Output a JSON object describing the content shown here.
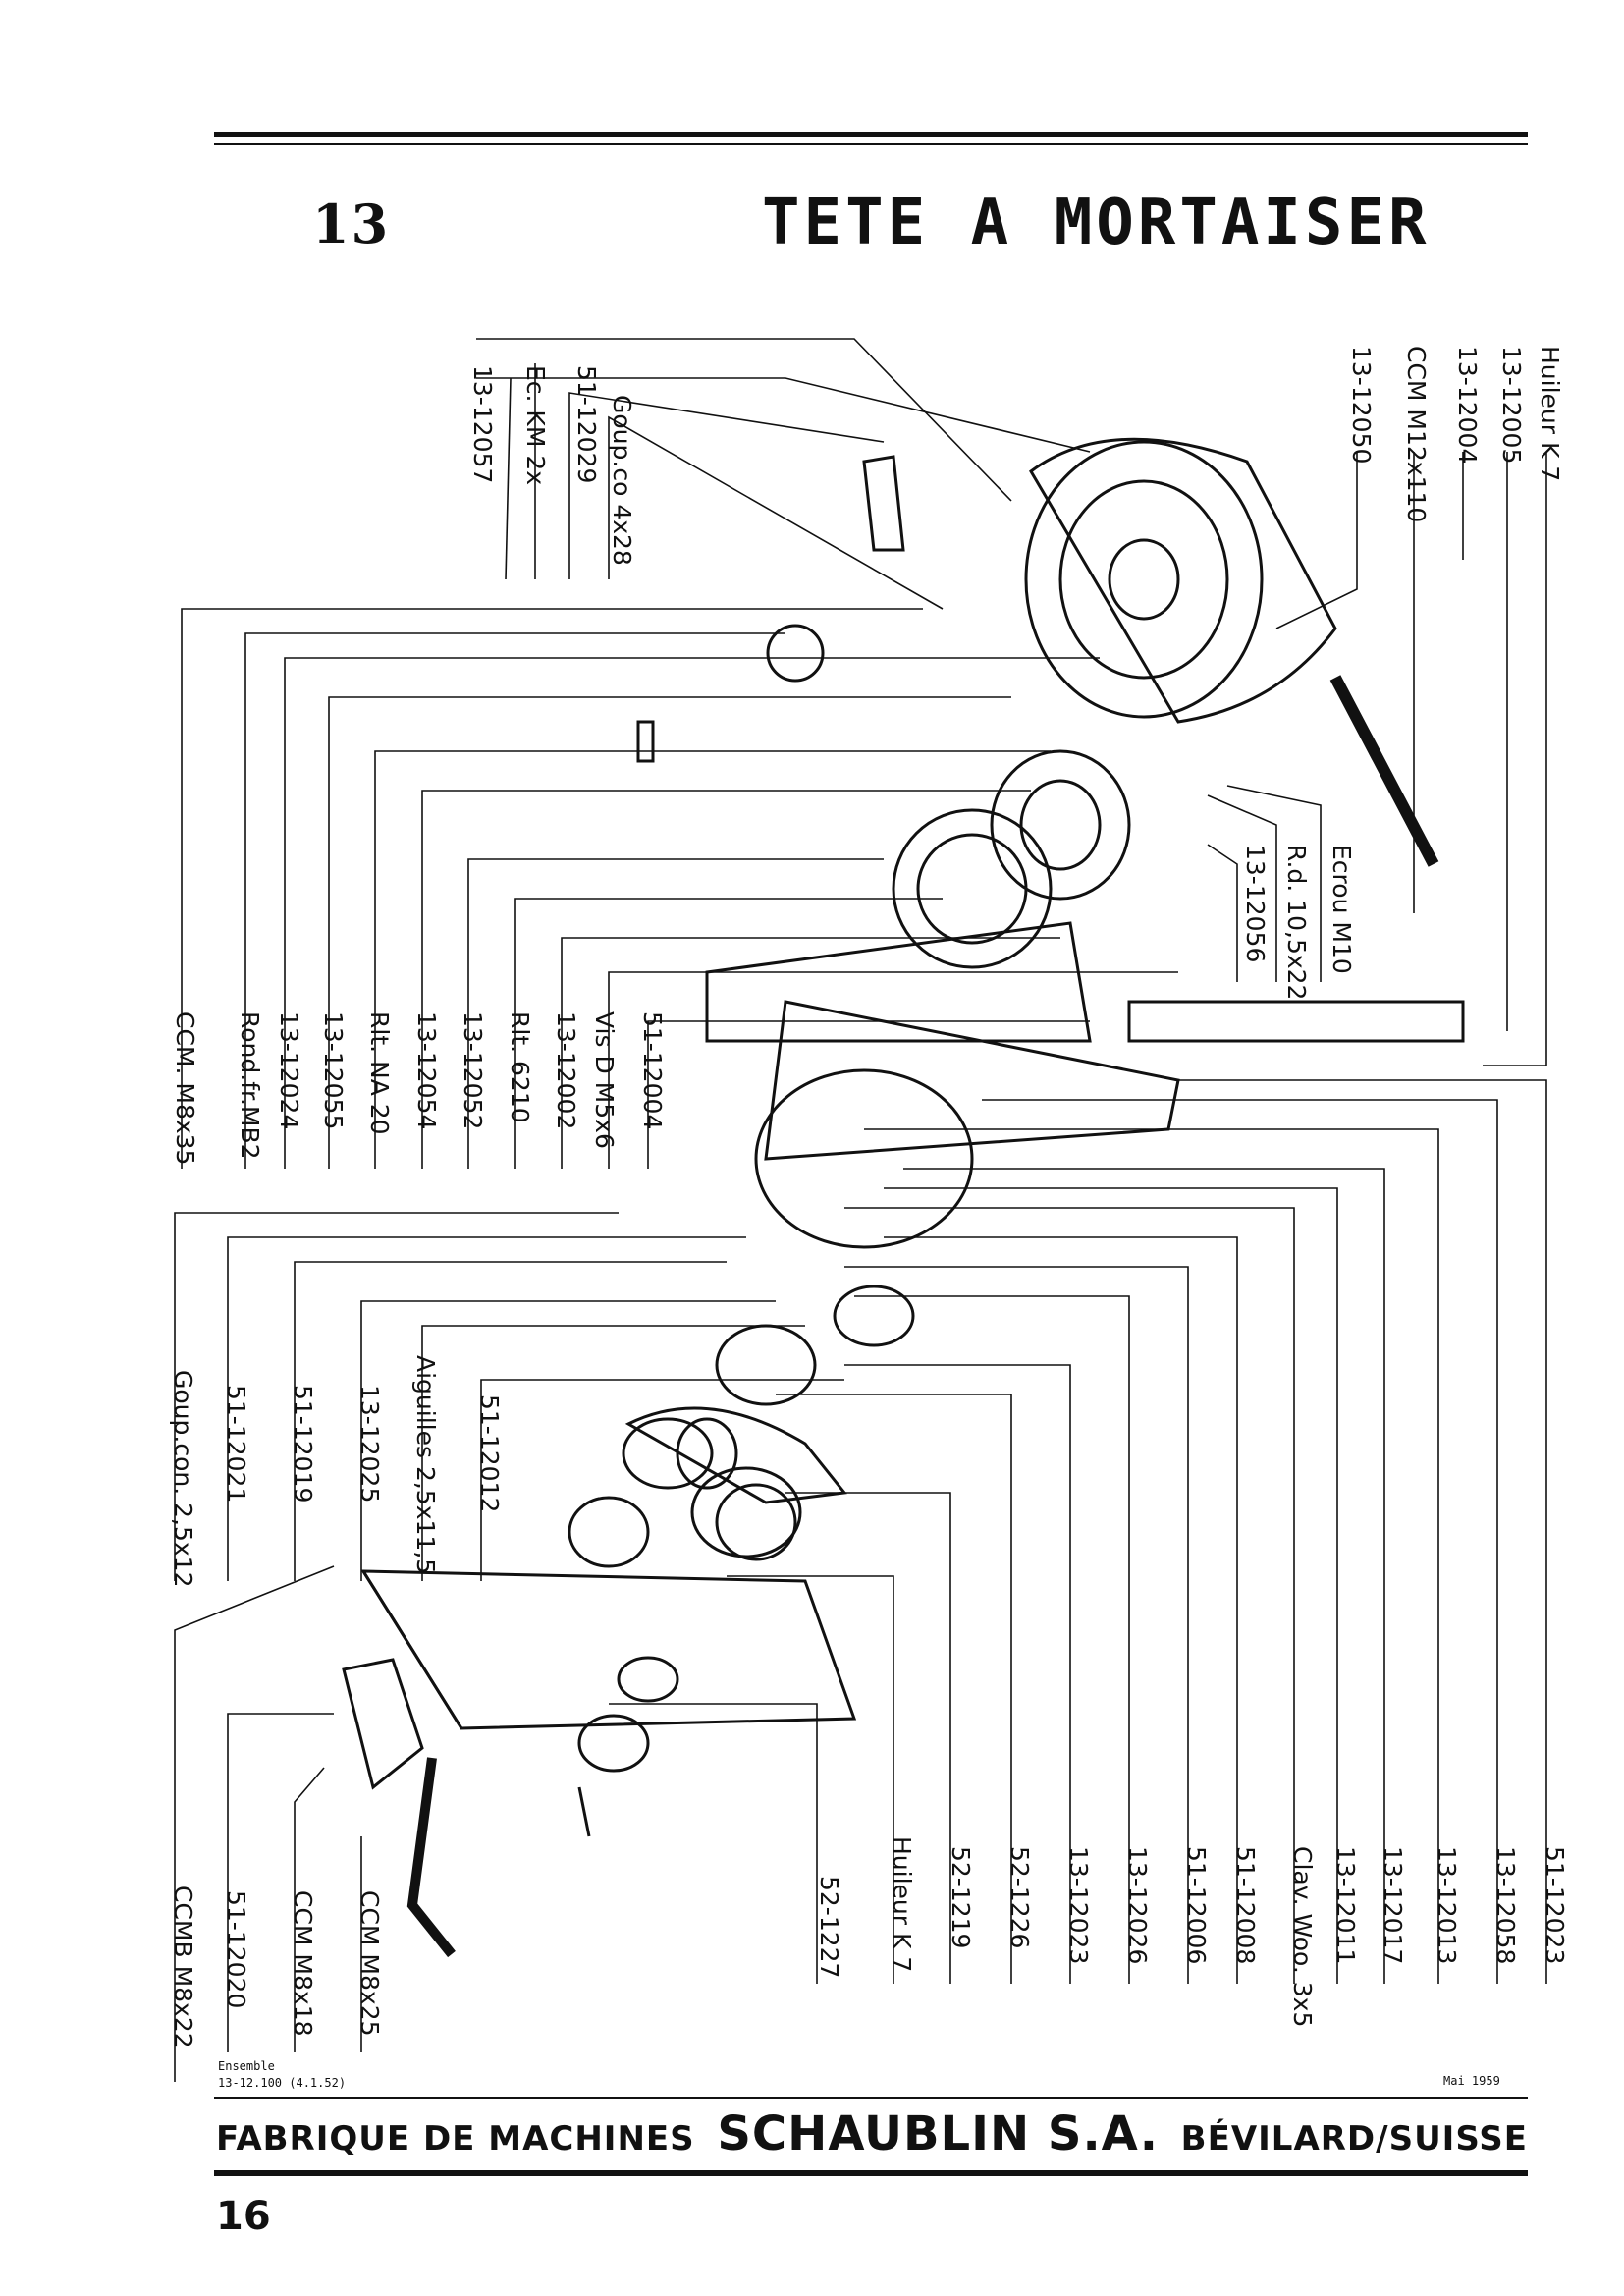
{
  "header": {
    "section_number": "13",
    "title": "TETE A MORTAISER"
  },
  "labels_top_left": [
    "13-12057",
    "Ec. KM 2x",
    "51-12029",
    "Goup.co 4x28"
  ],
  "labels_top_right": [
    "13-12050",
    "CCM M12x110",
    "13-12004",
    "13-12005",
    "Huileur K 7"
  ],
  "labels_middle_right": [
    "13-12056",
    "R.d. 10,5x22",
    "Ecrou M10"
  ],
  "labels_middle_left": [
    "CCM. M8x35",
    "Rond.fr.MB2",
    "13-12024",
    "13-12055",
    "Rlt. NA 20",
    "13-12054",
    "13-12052",
    "Rlt. 6210",
    "13-12002",
    "Vis D M5x6",
    "51-12004"
  ],
  "labels_lower_left": [
    "Goup.con. 2,5x12",
    "51-12021",
    "51-12019",
    "13-12025",
    "Aiguilles 2,5x11,5",
    "51-12012"
  ],
  "labels_bottom_left": [
    "CCMB M8x22",
    "51-12020",
    "CCM M8x18",
    "CCM M8x25"
  ],
  "labels_bottom_right": [
    "52-1227",
    "Huileur K 7",
    "52-1219",
    "52-1226",
    "13-12023",
    "13-12026",
    "51-12006",
    "51-12008",
    "Clav. Woo. 3x5",
    "13-12011",
    "13-12017",
    "13-12013",
    "13-12058",
    "51-12023"
  ],
  "footer": {
    "ensemble_label": "Ensemble",
    "ensemble_ref": "13-12.100 (4.1.52)",
    "date": "Mai 1959",
    "company_prefix": "FABRIQUE DE MACHINES",
    "company_name": "SCHAUBLIN S.A.",
    "company_location": "BÉVILARD/SUISSE",
    "page_number": "16"
  }
}
